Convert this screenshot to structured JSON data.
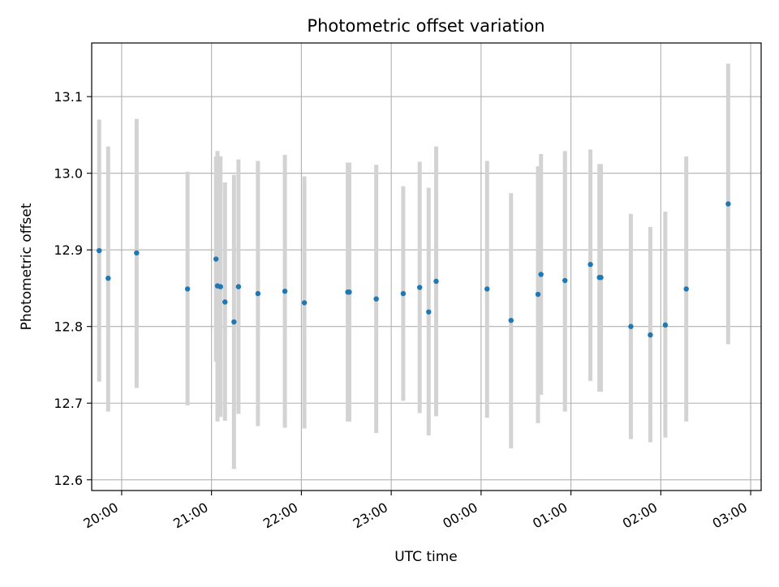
{
  "chart_data": {
    "type": "scatter",
    "title": "Photometric offset variation",
    "xlabel": "UTC time",
    "ylabel": "Photometric offset",
    "x_axis": "time",
    "xlim": [
      "19:40",
      "03:07"
    ],
    "ylim": [
      12.586,
      13.17
    ],
    "xticks": [
      "20:00",
      "21:00",
      "22:00",
      "23:00",
      "00:00",
      "01:00",
      "02:00",
      "03:00"
    ],
    "yticks": [
      12.6,
      12.7,
      12.8,
      12.9,
      13.0,
      13.1
    ],
    "grid": true,
    "legend": "none",
    "colors": {
      "point": "#1f77b4",
      "errorbar": "#d3d3d3",
      "grid": "#b0b0b0"
    },
    "points": [
      {
        "t": "19:45",
        "y": 12.899,
        "lo": 12.728,
        "hi": 13.07
      },
      {
        "t": "19:51",
        "y": 12.863,
        "lo": 12.689,
        "hi": 13.035
      },
      {
        "t": "20:10",
        "y": 12.896,
        "lo": 12.72,
        "hi": 13.071
      },
      {
        "t": "20:44",
        "y": 12.849,
        "lo": 12.697,
        "hi": 13.002
      },
      {
        "t": "21:03",
        "y": 12.888,
        "lo": 12.754,
        "hi": 13.022
      },
      {
        "t": "21:04",
        "y": 12.853,
        "lo": 12.676,
        "hi": 13.029
      },
      {
        "t": "21:06",
        "y": 12.852,
        "lo": 12.682,
        "hi": 13.022
      },
      {
        "t": "21:09",
        "y": 12.832,
        "lo": 12.677,
        "hi": 12.988
      },
      {
        "t": "21:15",
        "y": 12.806,
        "lo": 12.614,
        "hi": 12.998
      },
      {
        "t": "21:18",
        "y": 12.852,
        "lo": 12.686,
        "hi": 13.018
      },
      {
        "t": "21:31",
        "y": 12.843,
        "lo": 12.67,
        "hi": 13.016
      },
      {
        "t": "21:49",
        "y": 12.846,
        "lo": 12.668,
        "hi": 13.024
      },
      {
        "t": "22:02",
        "y": 12.831,
        "lo": 12.667,
        "hi": 12.996
      },
      {
        "t": "22:31",
        "y": 12.845,
        "lo": 12.676,
        "hi": 13.014
      },
      {
        "t": "22:32",
        "y": 12.845,
        "lo": 12.676,
        "hi": 13.014
      },
      {
        "t": "22:50",
        "y": 12.836,
        "lo": 12.661,
        "hi": 13.011
      },
      {
        "t": "23:08",
        "y": 12.843,
        "lo": 12.703,
        "hi": 12.983
      },
      {
        "t": "23:19",
        "y": 12.851,
        "lo": 12.687,
        "hi": 13.015
      },
      {
        "t": "23:25",
        "y": 12.819,
        "lo": 12.658,
        "hi": 12.981
      },
      {
        "t": "23:30",
        "y": 12.859,
        "lo": 12.683,
        "hi": 13.035
      },
      {
        "t": "00:04",
        "y": 12.849,
        "lo": 12.681,
        "hi": 13.016
      },
      {
        "t": "00:20",
        "y": 12.808,
        "lo": 12.641,
        "hi": 12.974
      },
      {
        "t": "00:38",
        "y": 12.842,
        "lo": 12.674,
        "hi": 13.009
      },
      {
        "t": "00:40",
        "y": 12.868,
        "lo": 12.711,
        "hi": 13.025
      },
      {
        "t": "00:56",
        "y": 12.86,
        "lo": 12.689,
        "hi": 13.029
      },
      {
        "t": "01:13",
        "y": 12.881,
        "lo": 12.729,
        "hi": 13.031
      },
      {
        "t": "01:19",
        "y": 12.864,
        "lo": 12.715,
        "hi": 13.012
      },
      {
        "t": "01:20",
        "y": 12.864,
        "lo": 12.715,
        "hi": 13.012
      },
      {
        "t": "01:40",
        "y": 12.8,
        "lo": 12.653,
        "hi": 12.947
      },
      {
        "t": "01:53",
        "y": 12.789,
        "lo": 12.649,
        "hi": 12.93
      },
      {
        "t": "02:03",
        "y": 12.802,
        "lo": 12.655,
        "hi": 12.95
      },
      {
        "t": "02:17",
        "y": 12.849,
        "lo": 12.676,
        "hi": 13.022
      },
      {
        "t": "02:45",
        "y": 12.96,
        "lo": 12.777,
        "hi": 13.143
      }
    ]
  }
}
